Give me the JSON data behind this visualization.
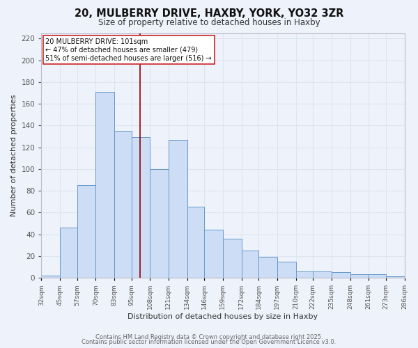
{
  "title": "20, MULBERRY DRIVE, HAXBY, YORK, YO32 3ZR",
  "subtitle": "Size of property relative to detached houses in Haxby",
  "xlabel": "Distribution of detached houses by size in Haxby",
  "ylabel": "Number of detached properties",
  "footer_line1": "Contains HM Land Registry data © Crown copyright and database right 2025.",
  "footer_line2": "Contains public sector information licensed under the Open Government Licence v3.0.",
  "annotation_line1": "20 MULBERRY DRIVE: 101sqm",
  "annotation_line2": "← 47% of detached houses are smaller (479)",
  "annotation_line3": "51% of semi-detached houses are larger (516) →",
  "bar_left_edges": [
    32,
    45,
    57,
    70,
    83,
    95,
    108,
    121,
    134,
    146,
    159,
    172,
    184,
    197,
    210,
    222,
    235,
    248,
    261,
    273
  ],
  "bar_heights": [
    2,
    46,
    85,
    171,
    135,
    129,
    100,
    127,
    65,
    44,
    36,
    25,
    19,
    15,
    6,
    6,
    5,
    3,
    3,
    1
  ],
  "bar_widths": [
    13,
    12,
    13,
    13,
    12,
    13,
    13,
    13,
    12,
    13,
    13,
    12,
    13,
    13,
    12,
    13,
    13,
    13,
    12,
    13
  ],
  "bar_color": "#ccddf5",
  "bar_edge_color": "#6699cc",
  "grid_color": "#dde5f0",
  "background_color": "#eef2fa",
  "marker_x": 101,
  "marker_color": "#880000",
  "xlim": [
    32,
    286
  ],
  "ylim": [
    0,
    225
  ],
  "yticks": [
    0,
    20,
    40,
    60,
    80,
    100,
    120,
    140,
    160,
    180,
    200,
    220
  ],
  "xtick_labels": [
    "32sqm",
    "45sqm",
    "57sqm",
    "70sqm",
    "83sqm",
    "95sqm",
    "108sqm",
    "121sqm",
    "134sqm",
    "146sqm",
    "159sqm",
    "172sqm",
    "184sqm",
    "197sqm",
    "210sqm",
    "222sqm",
    "235sqm",
    "248sqm",
    "261sqm",
    "273sqm",
    "286sqm"
  ],
  "xtick_positions": [
    32,
    45,
    57,
    70,
    83,
    95,
    108,
    121,
    134,
    146,
    159,
    172,
    184,
    197,
    210,
    222,
    235,
    248,
    261,
    273,
    286
  ]
}
